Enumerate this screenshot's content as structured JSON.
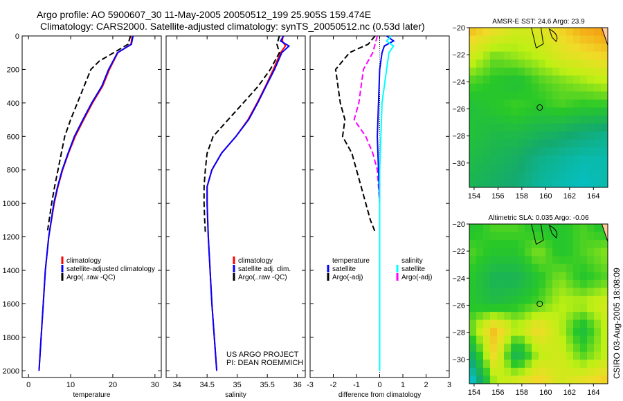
{
  "title_line1": "Argo profile: AO 5900607_30 11-May-2005 20050512_199 25.905S 159.474E",
  "title_line2": "Climatology: CARS2000. Satellite-adjusted climatology: synTS_20050512.nc (0.53d later)",
  "side_stamp": "CSIRO 03-Aug-2005 18:08:09",
  "project_line1": "US ARGO PROJECT",
  "project_line2": "PI: DEAN ROEMMICH",
  "colors": {
    "clim": "#ff0000",
    "sat": "#0000ff",
    "argo": "#000000",
    "sat_sal": "#00ffff",
    "argo_sal": "#ff00ff"
  },
  "chart_data": [
    {
      "type": "line",
      "id": "temp",
      "xlabel": "temperature",
      "xlim": [
        -1.5,
        31.5
      ],
      "ylim": [
        0,
        2040
      ],
      "xticks": [
        0,
        10,
        20,
        30
      ],
      "yticks": [
        0,
        200,
        400,
        600,
        800,
        1000,
        1200,
        1400,
        1600,
        1800,
        2000
      ],
      "legend": [
        "climatology",
        "satellite-adjusted climatology",
        "Argo(..raw -QC)"
      ],
      "series": [
        {
          "name": "climatology",
          "style": "clim",
          "depth": [
            0,
            50,
            100,
            200,
            300,
            400,
            500,
            600,
            700,
            800,
            900,
            1000,
            1200,
            1400,
            1600,
            1800,
            2000
          ],
          "values": [
            24.6,
            24.3,
            21.2,
            19.2,
            17.6,
            15.2,
            13.1,
            11.1,
            9.5,
            8.1,
            7.0,
            6.1,
            4.8,
            4.0,
            3.5,
            3.0,
            2.5
          ]
        },
        {
          "name": "satellite-adjusted climatology",
          "style": "sat",
          "depth": [
            0,
            50,
            100,
            200,
            300,
            400,
            500,
            600,
            700,
            800,
            900,
            1000,
            1200,
            1400,
            1600,
            1800,
            2000
          ],
          "values": [
            24.8,
            24.4,
            21.1,
            19.0,
            17.4,
            15.0,
            12.9,
            10.9,
            9.4,
            8.0,
            6.9,
            6.0,
            4.8,
            4.0,
            3.5,
            3.0,
            2.5
          ]
        },
        {
          "name": "Argo(..raw -QC)",
          "style": "argo",
          "dash": true,
          "depth": [
            0,
            50,
            100,
            150,
            200,
            300,
            400,
            500,
            600,
            700,
            800,
            900,
            1000,
            1100,
            1170
          ],
          "values": [
            24.2,
            23.6,
            20.2,
            16.8,
            14.8,
            13.2,
            11.6,
            10.0,
            8.6,
            7.8,
            7.0,
            6.2,
            5.5,
            4.9,
            4.5
          ]
        }
      ]
    },
    {
      "type": "line",
      "id": "sal",
      "xlabel": "salinity",
      "xlim": [
        33.82,
        36.13
      ],
      "ylim": [
        0,
        2040
      ],
      "xticks": [
        34,
        34.5,
        35,
        35.5,
        36
      ],
      "yticks": [
        0,
        200,
        400,
        600,
        800,
        1000,
        1200,
        1400,
        1600,
        1800,
        2000
      ],
      "legend": [
        "climatology",
        "satellite adj. clim.",
        "Argo(..raw -QC)"
      ],
      "series": [
        {
          "name": "climatology",
          "style": "clim",
          "depth": [
            0,
            30,
            60,
            100,
            200,
            300,
            400,
            500,
            600,
            700,
            800,
            900,
            1000,
            1200,
            1400,
            1600,
            1800,
            2000
          ],
          "values": [
            35.76,
            35.75,
            35.8,
            35.72,
            35.6,
            35.47,
            35.33,
            35.18,
            34.98,
            34.74,
            34.58,
            34.5,
            34.5,
            34.52,
            34.55,
            34.58,
            34.62,
            34.66
          ]
        },
        {
          "name": "satellite adj. clim.",
          "style": "sat",
          "depth": [
            0,
            30,
            60,
            100,
            200,
            300,
            400,
            500,
            600,
            700,
            800,
            900,
            1000,
            1200,
            1400,
            1600,
            1800,
            2000
          ],
          "values": [
            35.77,
            35.72,
            35.86,
            35.74,
            35.62,
            35.48,
            35.34,
            35.19,
            34.98,
            34.74,
            34.58,
            34.5,
            34.5,
            34.52,
            34.55,
            34.58,
            34.62,
            34.66
          ]
        },
        {
          "name": "Argo(..raw -QC)",
          "style": "argo",
          "dash": true,
          "depth": [
            0,
            50,
            100,
            200,
            300,
            400,
            500,
            600,
            700,
            800,
            900,
            1000,
            1100,
            1170
          ],
          "values": [
            35.7,
            35.66,
            35.7,
            35.55,
            35.35,
            35.1,
            34.85,
            34.6,
            34.5,
            34.47,
            34.45,
            34.45,
            34.46,
            34.47
          ]
        }
      ]
    },
    {
      "type": "line",
      "id": "diff",
      "xlabel": "difference from climatology",
      "xlim": [
        -3,
        3
      ],
      "ylim": [
        0,
        2040
      ],
      "xticks": [
        -3,
        -2,
        -1,
        0,
        1,
        2,
        3
      ],
      "yticks": [
        0,
        200,
        400,
        600,
        800,
        1000,
        1200,
        1400,
        1600,
        1800,
        2000
      ],
      "legend_left": [
        "temperature",
        "satellite",
        "Argo(-adj)"
      ],
      "legend_right": [
        "salinity",
        "satellite",
        "Argo(-adj)"
      ],
      "series": [
        {
          "name": "temperature Argo(-adj)",
          "style": "argo",
          "dash": true,
          "depth": [
            0,
            50,
            80,
            100,
            150,
            200,
            300,
            400,
            500,
            600,
            700,
            800,
            900,
            1000,
            1100,
            1170
          ],
          "values": [
            -0.2,
            -0.5,
            -1.0,
            -1.3,
            -1.6,
            -1.9,
            -1.8,
            -1.7,
            -1.5,
            -1.6,
            -1.2,
            -1.0,
            -0.8,
            -0.6,
            -0.4,
            -0.2
          ]
        },
        {
          "name": "salinity Argo(-adj)",
          "style": "argo_sal",
          "dash": true,
          "depth": [
            0,
            50,
            100,
            200,
            300,
            400,
            500,
            600,
            700,
            800,
            900,
            1000
          ],
          "values": [
            -0.1,
            -0.2,
            -0.3,
            -0.7,
            -0.8,
            -0.9,
            -1.1,
            -0.6,
            -0.3,
            -0.1,
            -0.05,
            0
          ]
        },
        {
          "name": "temperature satellite",
          "style": "sat",
          "depth": [
            0,
            30,
            60,
            100,
            200,
            400,
            600,
            800,
            1000,
            1400,
            2000
          ],
          "values": [
            0.3,
            0.6,
            0.2,
            0.1,
            0,
            -0.05,
            -0.1,
            -0.05,
            0,
            0,
            0
          ]
        },
        {
          "name": "salinity satellite",
          "style": "sat_sal",
          "depth": [
            0,
            30,
            60,
            100,
            200,
            400,
            600,
            800,
            1000,
            1400,
            2000
          ],
          "values": [
            0.5,
            0.3,
            0.6,
            0.4,
            0.3,
            0.1,
            0.05,
            0,
            0,
            0,
            0
          ]
        }
      ]
    },
    {
      "type": "heatmap",
      "id": "sst",
      "title": "AMSR-E SST: 24.6 Argo: 23.9",
      "xticks": [
        154,
        156,
        158,
        160,
        162,
        164
      ],
      "yticks": [
        -20,
        -22,
        -24,
        -26,
        -28,
        -30
      ],
      "xlim": [
        153.6,
        165.2
      ],
      "ylim": [
        -31.8,
        -20
      ],
      "vrange": [
        22,
        27
      ],
      "float": [
        159.5,
        -25.9
      ],
      "values": [
        [
          26,
          25.6,
          25.2,
          25.4,
          25.8,
          26.2,
          26.4
        ],
        [
          25.2,
          24.6,
          24.8,
          25.0,
          25.4,
          25.6,
          25.8
        ],
        [
          24.4,
          24.2,
          24.0,
          24.4,
          24.6,
          24.8,
          25.0
        ],
        [
          24.0,
          24.2,
          24.4,
          24.2,
          24.4,
          24.2,
          24.2
        ],
        [
          24.0,
          23.8,
          23.8,
          23.6,
          23.4,
          23.2,
          23.0
        ],
        [
          23.8,
          23.6,
          23.4,
          23.0,
          22.8,
          22.6,
          22.6
        ],
        [
          23.6,
          23.4,
          23.2,
          22.8,
          22.6,
          22.4,
          22.6
        ]
      ]
    },
    {
      "type": "heatmap",
      "id": "sla",
      "title": "Altimetric SLA: 0.035 Argo: -0.06",
      "xticks": [
        154,
        156,
        158,
        160,
        162,
        164
      ],
      "yticks": [
        -20,
        -22,
        -24,
        -26,
        -28,
        -30
      ],
      "xlim": [
        153.6,
        165.2
      ],
      "ylim": [
        -31.8,
        -20
      ],
      "vrange": [
        -0.15,
        0.2
      ],
      "float": [
        159.5,
        -25.9
      ],
      "values": [
        [
          0.0,
          0.02,
          0.02,
          0.0,
          0.0,
          0.02,
          0.0
        ],
        [
          0.02,
          0.0,
          0.0,
          0.04,
          0.0,
          0.02,
          0.04
        ],
        [
          0.0,
          -0.04,
          -0.04,
          0.0,
          0.04,
          0.0,
          0.02
        ],
        [
          0.0,
          -0.02,
          0.0,
          0.02,
          0.06,
          0.06,
          0.08
        ],
        [
          0.04,
          0.14,
          0.06,
          0.12,
          0.06,
          -0.02,
          0.06
        ],
        [
          -0.04,
          0.12,
          -0.05,
          0.06,
          0.08,
          0.02,
          0.06
        ],
        [
          -0.12,
          0.06,
          0.08,
          0.12,
          0.08,
          0.1,
          0.12
        ]
      ]
    }
  ]
}
